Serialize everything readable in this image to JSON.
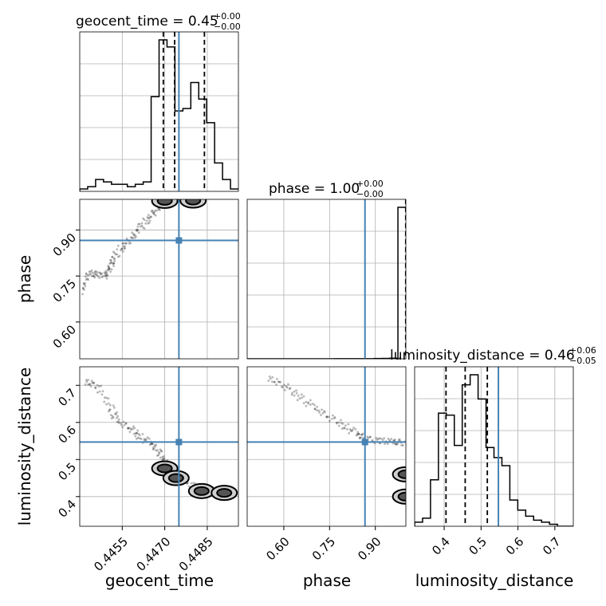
{
  "chart_data": {
    "type": "corner",
    "parameters": [
      "geocent_time",
      "phase",
      "luminosity_distance"
    ],
    "truths": {
      "geocent_time": 0.4475,
      "phase": 0.866,
      "luminosity_distance": 0.547
    },
    "truth_color": "#4682b4",
    "titles": [
      {
        "param": "geocent_time",
        "main": "geocent_time = 0.45",
        "sup": "+0.00",
        "sub": "−0.00"
      },
      {
        "param": "phase",
        "main": "phase = 1.00",
        "sup": "+0.00",
        "sub": "−0.00"
      },
      {
        "param": "luminosity_distance",
        "main": "luminosity_distance = 0.46",
        "sup": "+0.06",
        "sub": "−0.05"
      }
    ],
    "axis_labels": {
      "geocent_time": "geocent_time",
      "phase": "phase",
      "luminosity_distance": "luminosity_distance"
    },
    "axes": {
      "geocent_time": {
        "range": [
          0.444,
          0.4496
        ],
        "ticks": [
          0.4455,
          0.447,
          0.4485
        ],
        "tick_labels": [
          "0.4455",
          "0.4470",
          "0.4485"
        ]
      },
      "phase": {
        "range": [
          0.48,
          1.0
        ],
        "ticks": [
          0.6,
          0.75,
          0.9
        ],
        "tick_labels": [
          "0.60",
          "0.75",
          "0.90"
        ]
      },
      "luminosity_distance": {
        "range": [
          0.32,
          0.75
        ],
        "ticks": [
          0.4,
          0.5,
          0.6,
          0.7
        ],
        "tick_labels": [
          "0.4",
          "0.5",
          "0.6",
          "0.7"
        ]
      }
    },
    "histograms": {
      "geocent_time": {
        "bin_edges": [
          0.444,
          0.44428,
          0.44456,
          0.44484,
          0.44512,
          0.4454,
          0.44568,
          0.44596,
          0.44624,
          0.44652,
          0.4468,
          0.44708,
          0.44736,
          0.44764,
          0.44792,
          0.4482,
          0.44848,
          0.44876,
          0.44904,
          0.44932,
          0.4496
        ],
        "counts": [
          1,
          2,
          5,
          4,
          3,
          3,
          2,
          3,
          4,
          40,
          64,
          61,
          34,
          35,
          46,
          39,
          29,
          12,
          5,
          1
        ],
        "quantiles": [
          0.44695,
          0.44735,
          0.4484
        ]
      },
      "phase": {
        "bin_edges": [
          0.48,
          0.506,
          0.532,
          0.558,
          0.584,
          0.61,
          0.636,
          0.662,
          0.688,
          0.714,
          0.74,
          0.766,
          0.792,
          0.818,
          0.844,
          0.87,
          0.896,
          0.922,
          0.948,
          0.974,
          1.0
        ],
        "counts": [
          0,
          0,
          0,
          0,
          0,
          0,
          0,
          0,
          0,
          0,
          0,
          1,
          1,
          1,
          1,
          1,
          2,
          3,
          4,
          1100
        ],
        "quantiles": [
          0.9995,
          0.99985,
          0.99998
        ]
      },
      "luminosity_distance": {
        "bin_edges": [
          0.32,
          0.3415,
          0.363,
          0.3845,
          0.406,
          0.4275,
          0.449,
          0.4705,
          0.492,
          0.5135,
          0.535,
          0.5565,
          0.578,
          0.5995,
          0.621,
          0.6425,
          0.664,
          0.6855,
          0.707,
          0.7285,
          0.75
        ],
        "counts": [
          2,
          4,
          23,
          56,
          55,
          40,
          70,
          75,
          63,
          39,
          34,
          30,
          13,
          8,
          5,
          3,
          2,
          1,
          0,
          0
        ],
        "quantiles": [
          0.405,
          0.457,
          0.517
        ]
      }
    },
    "joint_2d": {
      "phase_vs_geocent_time": {
        "samples_path": [
          [
            0.4441,
            0.7
          ],
          [
            0.4443,
            0.76
          ],
          [
            0.4446,
            0.755
          ],
          [
            0.4449,
            0.75
          ],
          [
            0.4451,
            0.78
          ],
          [
            0.4452,
            0.81
          ],
          [
            0.4455,
            0.845
          ],
          [
            0.4458,
            0.87
          ],
          [
            0.4461,
            0.905
          ],
          [
            0.4464,
            0.935
          ],
          [
            0.4467,
            0.965
          ],
          [
            0.4469,
            0.99
          ],
          [
            0.4473,
            0.998
          ],
          [
            0.4479,
            0.999
          ],
          [
            0.4484,
            0.998
          ]
        ],
        "high_density": [
          [
            0.447,
            0.995
          ],
          [
            0.448,
            0.996
          ]
        ]
      },
      "luminosity_distance_vs_geocent_time": {
        "samples_path": [
          [
            0.4442,
            0.71
          ],
          [
            0.4446,
            0.7
          ],
          [
            0.4451,
            0.64
          ],
          [
            0.4453,
            0.605
          ],
          [
            0.4458,
            0.585
          ],
          [
            0.4461,
            0.563
          ],
          [
            0.4465,
            0.545
          ],
          [
            0.4468,
            0.52
          ],
          [
            0.447,
            0.49
          ],
          [
            0.4472,
            0.46
          ],
          [
            0.4476,
            0.44
          ],
          [
            0.4482,
            0.425
          ],
          [
            0.449,
            0.41
          ],
          [
            0.4494,
            0.405
          ]
        ],
        "high_density": [
          [
            0.447,
            0.476
          ],
          [
            0.4474,
            0.45
          ],
          [
            0.4483,
            0.415
          ],
          [
            0.4491,
            0.41
          ]
        ]
      },
      "luminosity_distance_vs_phase": {
        "samples_path": [
          [
            0.55,
            0.72
          ],
          [
            0.6,
            0.7
          ],
          [
            0.65,
            0.67
          ],
          [
            0.7,
            0.64
          ],
          [
            0.75,
            0.615
          ],
          [
            0.8,
            0.59
          ],
          [
            0.84,
            0.57
          ],
          [
            0.87,
            0.555
          ],
          [
            0.92,
            0.55
          ],
          [
            0.96,
            0.548
          ],
          [
            0.995,
            0.545
          ]
        ],
        "high_density": [
          [
            0.999,
            0.46
          ],
          [
            0.999,
            0.4
          ]
        ]
      }
    }
  }
}
